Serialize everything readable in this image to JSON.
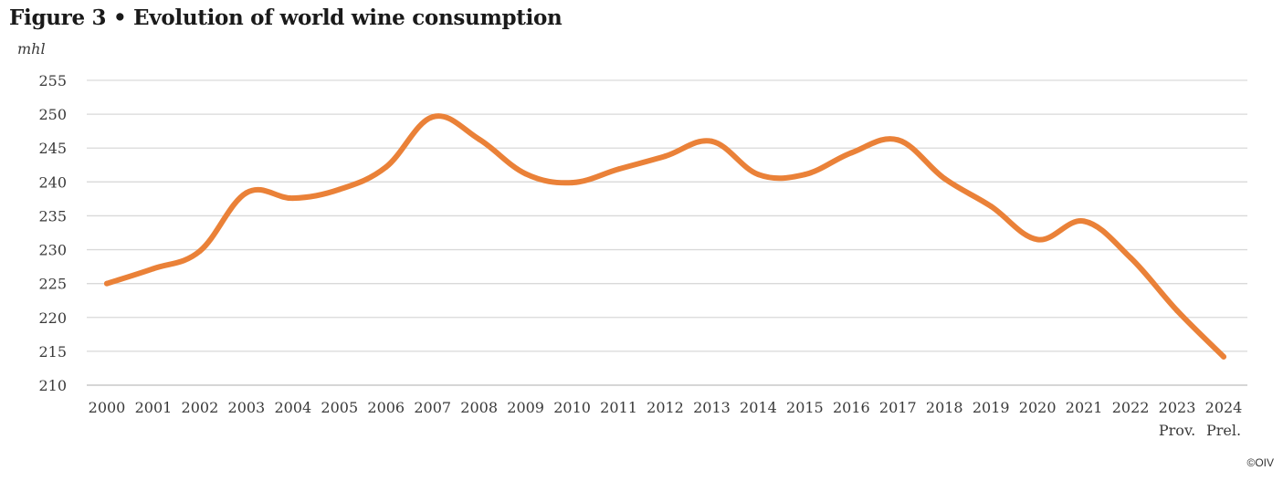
{
  "title": "Figure 3 • Evolution of world wine consumption",
  "credit": "©OIV",
  "chart_data": {
    "type": "line",
    "ylabel": "mhl",
    "x": [
      "2000",
      "2001",
      "2002",
      "2003",
      "2004",
      "2005",
      "2006",
      "2007",
      "2008",
      "2009",
      "2010",
      "2011",
      "2012",
      "2013",
      "2014",
      "2015",
      "2016",
      "2017",
      "2018",
      "2019",
      "2020",
      "2021",
      "2022",
      "2023",
      "2024"
    ],
    "x_sublabels": [
      {
        "index": 23,
        "text": "Prov."
      },
      {
        "index": 24,
        "text": "Prel."
      }
    ],
    "series": [
      {
        "color": "#ea8138",
        "values": [
          225.0,
          227.2,
          229.8,
          238.4,
          237.6,
          238.9,
          242.2,
          249.6,
          246.3,
          241.2,
          239.9,
          241.9,
          243.8,
          246.0,
          241.1,
          241.1,
          244.3,
          246.2,
          240.5,
          236.4,
          231.5,
          234.2,
          228.8,
          221.0,
          214.2
        ]
      }
    ],
    "yticks": [
      210,
      215,
      220,
      225,
      230,
      235,
      240,
      245,
      250,
      255
    ],
    "ylim": [
      210,
      255
    ],
    "grid": true,
    "legend": "none"
  }
}
